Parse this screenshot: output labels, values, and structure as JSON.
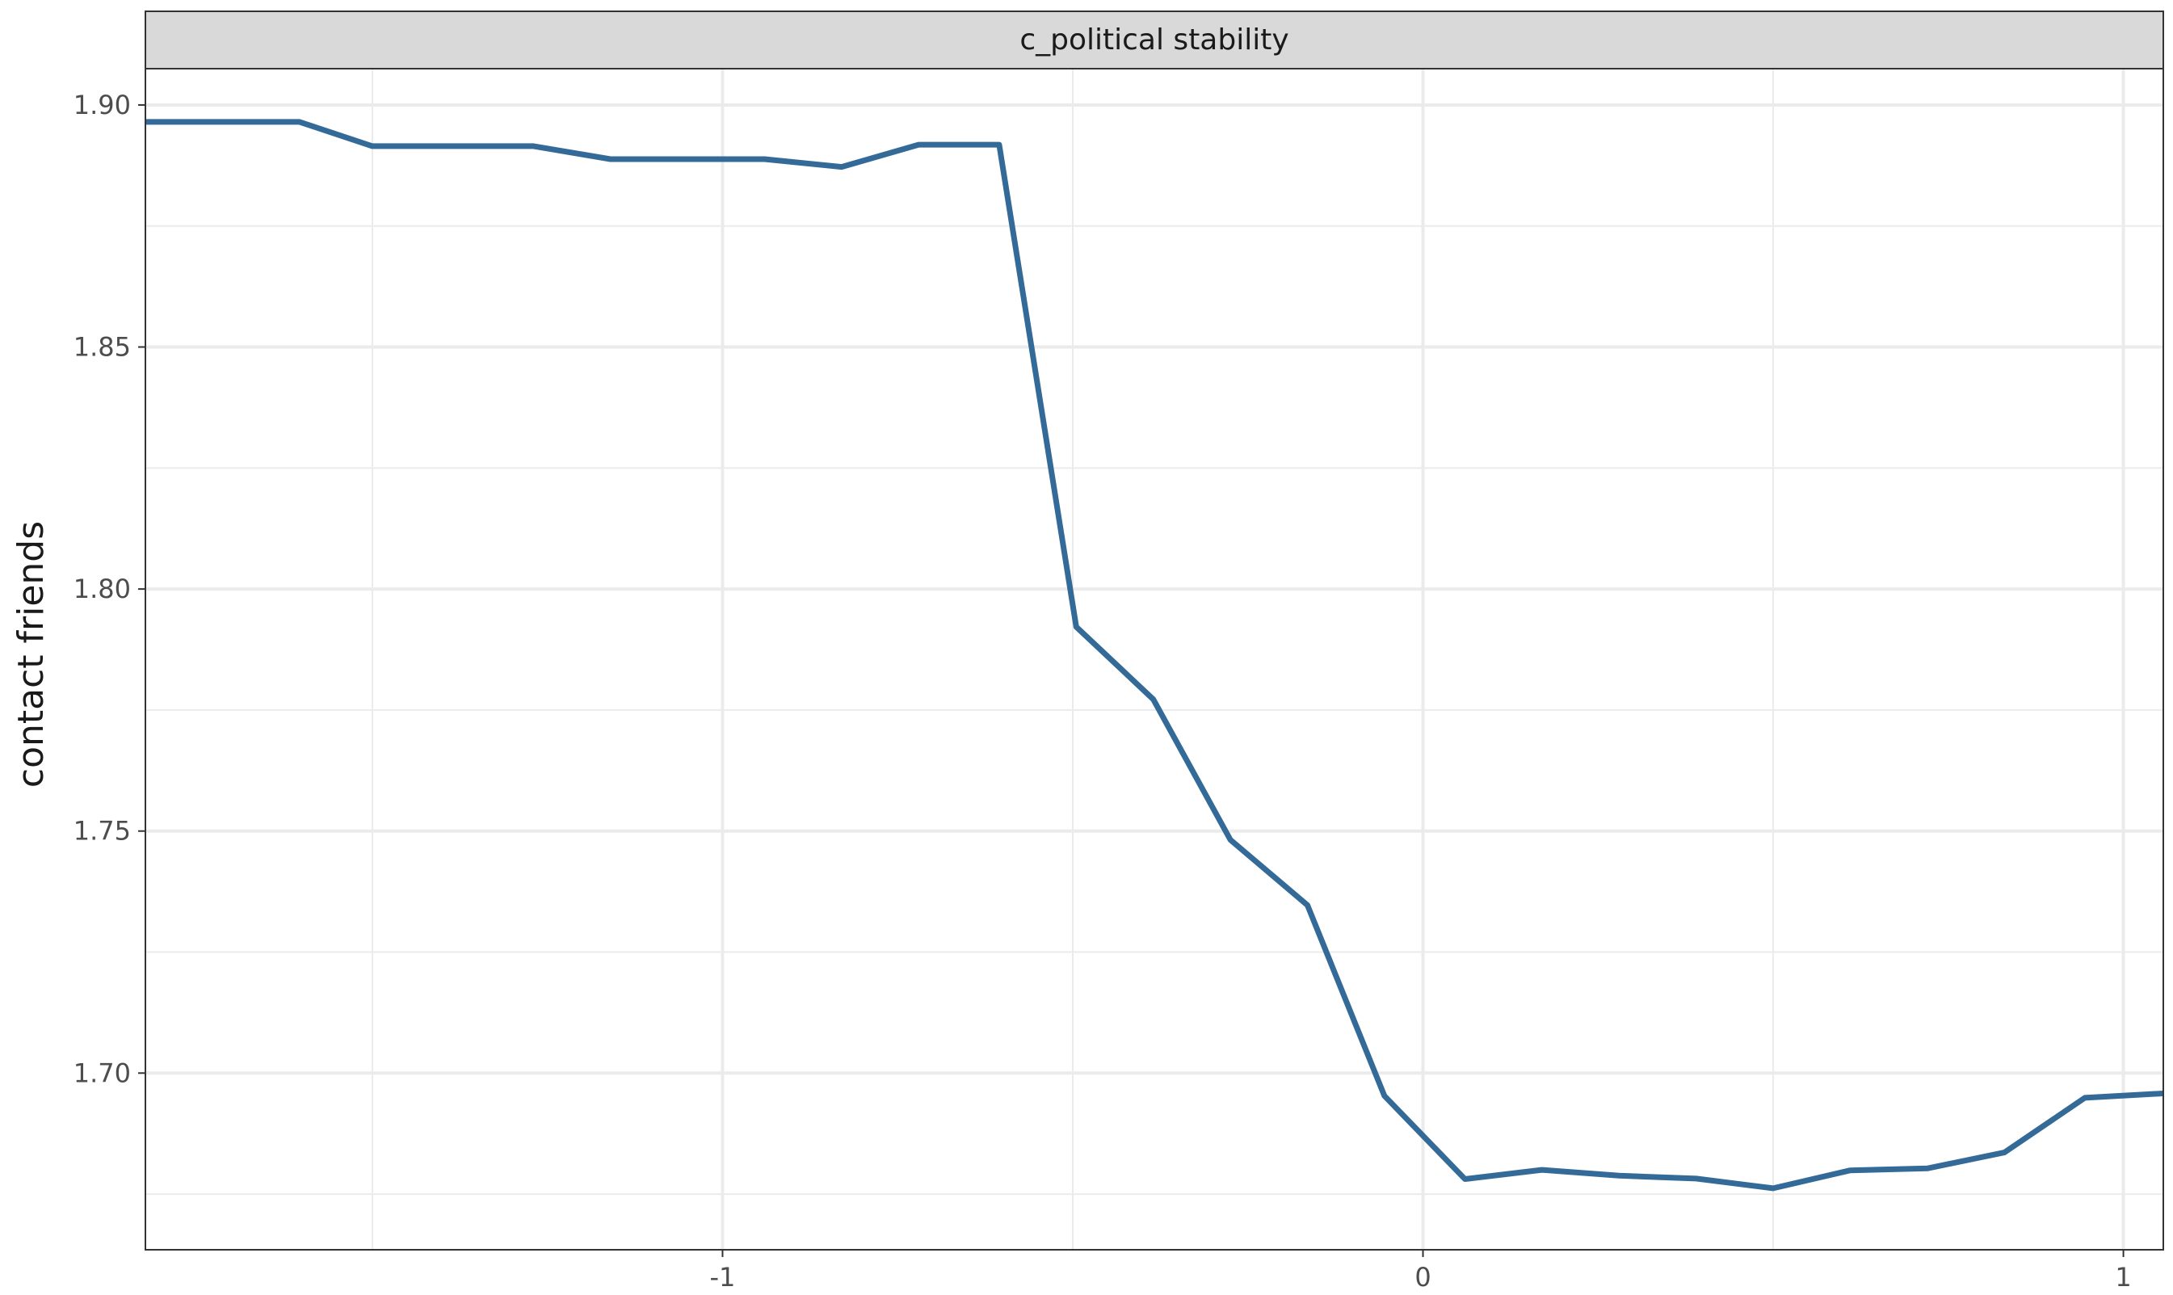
{
  "chart_data": {
    "type": "line",
    "facet_label": "c_political stability",
    "xlabel": "",
    "ylabel": "contact friends",
    "xlim": [
      -1.824,
      1.057
    ],
    "ylim": [
      1.6635,
      1.9075
    ],
    "x_ticks": [
      -1,
      0,
      1
    ],
    "x_tick_labels": [
      "-1",
      "0",
      "1"
    ],
    "x_minor_ticks": [
      -1.5,
      -0.5,
      0.5
    ],
    "y_ticks": [
      1.7,
      1.75,
      1.8,
      1.85,
      1.9
    ],
    "y_tick_labels": [
      "1.70",
      "1.75",
      "1.80",
      "1.85",
      "1.90"
    ],
    "y_minor_ticks": [
      1.675,
      1.725,
      1.775,
      1.825,
      1.875
    ],
    "grid": true,
    "line_color": "#336a98",
    "series": [
      {
        "x": [
          -1.824,
          -1.604,
          -1.5,
          -1.27,
          -1.16,
          -0.94,
          -0.83,
          -0.72,
          -0.605,
          -0.495,
          -0.385,
          -0.275,
          -0.165,
          -0.055,
          0.06,
          0.17,
          0.28,
          0.39,
          0.5,
          0.61,
          0.72,
          0.83,
          0.945,
          1.057
        ],
        "y": [
          1.8965,
          1.8965,
          1.8915,
          1.8915,
          1.8888,
          1.8888,
          1.8872,
          1.8918,
          1.8918,
          1.7922,
          1.7772,
          1.7482,
          1.7347,
          1.6953,
          1.6781,
          1.68,
          1.6788,
          1.6782,
          1.6762,
          1.6799,
          1.6803,
          1.6836,
          1.6949,
          1.6958
        ]
      }
    ]
  }
}
